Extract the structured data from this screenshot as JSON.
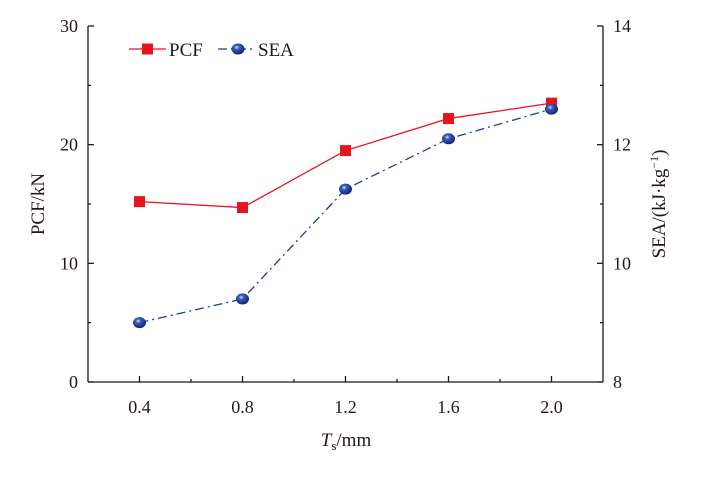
{
  "chart_data": {
    "type": "line",
    "x": [
      0.4,
      0.8,
      1.2,
      1.6,
      2.0
    ],
    "xticks": [
      "0.4",
      "0.8",
      "1.2",
      "1.6",
      "2.0"
    ],
    "xlabel_main": "T",
    "xlabel_sub": "s",
    "xlabel_unit": "/mm",
    "xlim": [
      0.2,
      2.2
    ],
    "ylabel_left": "PCF/kN",
    "ylim_left": [
      0,
      30
    ],
    "yticks_left": [
      "0",
      "10",
      "20",
      "30"
    ],
    "ylabel_right": "SEA/(kJ·kg",
    "ylabel_right_sup": "−1",
    "ylabel_right_close": ")",
    "ylim_right": [
      8,
      14
    ],
    "yticks_right": [
      "8",
      "10",
      "12",
      "14"
    ],
    "series": [
      {
        "name": "PCF",
        "axis": "left",
        "color": "#e8141b",
        "marker": "square",
        "line": "solid",
        "values": [
          15.2,
          14.7,
          19.5,
          22.2,
          23.5
        ]
      },
      {
        "name": "SEA",
        "axis": "right",
        "color": "#1f3f9a",
        "marker": "sphere",
        "line": "dash-dot",
        "values": [
          9.0,
          9.4,
          11.25,
          12.1,
          12.6
        ]
      }
    ],
    "legend_position": "top-left",
    "grid": false
  }
}
